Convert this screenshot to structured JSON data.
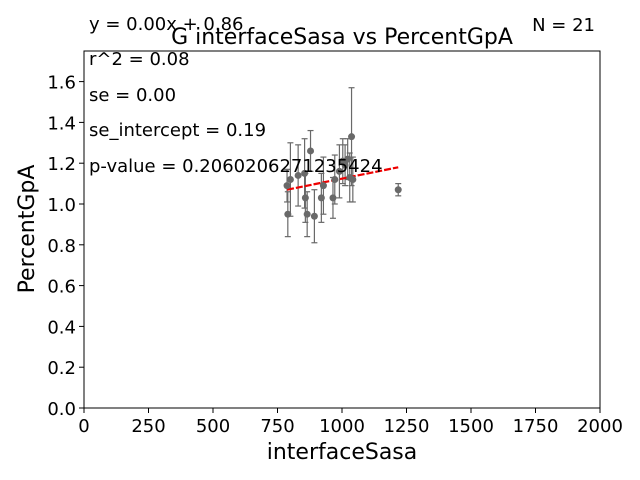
{
  "chart_data": {
    "type": "scatter",
    "title": "G interfaceSasa vs PercentGpA",
    "xlabel": "interfaceSasa",
    "ylabel": "PercentGpA",
    "xlim": [
      0,
      2000
    ],
    "ylim": [
      0,
      1.75
    ],
    "xticks": [
      0,
      250,
      500,
      750,
      1000,
      1250,
      1500,
      1750,
      2000
    ],
    "yticks": [
      0.0,
      0.2,
      0.4,
      0.6,
      0.8,
      1.0,
      1.2,
      1.4,
      1.6
    ],
    "xtick_labels": [
      "0",
      "250",
      "500",
      "750",
      "1000",
      "1250",
      "1500",
      "1750",
      "2000"
    ],
    "ytick_labels": [
      "0.0",
      "0.2",
      "0.4",
      "0.6",
      "0.8",
      "1.0",
      "1.2",
      "1.4",
      "1.6"
    ],
    "grid": false,
    "point_color": "#696969",
    "fit_color": "#ee0000",
    "points": [
      {
        "x": 787,
        "y": 1.09,
        "err": 0.08
      },
      {
        "x": 790,
        "y": 0.95,
        "err": 0.11
      },
      {
        "x": 800,
        "y": 1.12,
        "err": 0.18
      },
      {
        "x": 830,
        "y": 1.14,
        "err": 0.15
      },
      {
        "x": 855,
        "y": 1.15,
        "err": 0.17
      },
      {
        "x": 858,
        "y": 1.03,
        "err": 0.12
      },
      {
        "x": 865,
        "y": 0.95,
        "err": 0.11
      },
      {
        "x": 878,
        "y": 1.26,
        "err": 0.1
      },
      {
        "x": 893,
        "y": 0.94,
        "err": 0.13
      },
      {
        "x": 920,
        "y": 1.03,
        "err": 0.12
      },
      {
        "x": 928,
        "y": 1.09,
        "err": 0.14
      },
      {
        "x": 965,
        "y": 1.03,
        "err": 0.1
      },
      {
        "x": 972,
        "y": 1.12,
        "err": 0.12
      },
      {
        "x": 990,
        "y": 1.16,
        "err": 0.13
      },
      {
        "x": 1003,
        "y": 1.21,
        "err": 0.11
      },
      {
        "x": 1012,
        "y": 1.19,
        "err": 0.1
      },
      {
        "x": 1022,
        "y": 1.22,
        "err": 0.1
      },
      {
        "x": 1030,
        "y": 1.13,
        "err": 0.12
      },
      {
        "x": 1037,
        "y": 1.33,
        "err": 0.24
      },
      {
        "x": 1042,
        "y": 1.12,
        "err": 0.11
      },
      {
        "x": 1218,
        "y": 1.07,
        "err": 0.03
      }
    ],
    "fit_line": {
      "x": [
        787,
        1218
      ],
      "y": [
        1.07,
        1.18
      ]
    },
    "annotations": {
      "equation": "y = 0.00x + 0.86",
      "n": "N = 21",
      "r2": "r^2 = 0.08",
      "se": "se = 0.00",
      "se_intercept": "se_intercept = 0.19",
      "pvalue": "p-value = 0.2060206271235424"
    }
  }
}
